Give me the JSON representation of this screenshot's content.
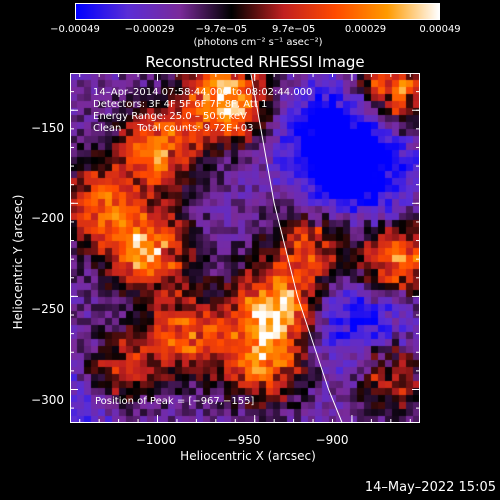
{
  "chart_data": {
    "type": "heatmap",
    "title": "Reconstructed RHESSI Image",
    "xlabel": "Heliocentric X (arcsec)",
    "ylabel": "Heliocentric Y (arcsec)",
    "xlim": [
      -1045,
      -865
    ],
    "ylim": [
      -318,
      -130
    ],
    "x_ticks": [
      -1000,
      -950,
      -900
    ],
    "x_tick_labels": [
      "−1000",
      "−950",
      "−900"
    ],
    "y_ticks": [
      -150,
      -200,
      -250,
      -300
    ],
    "y_tick_labels": [
      "−150",
      "−200",
      "−250",
      "−300"
    ],
    "colorbar": {
      "range": [
        -0.00049,
        0.00049
      ],
      "ticks": [
        -0.00049,
        -0.00029,
        -9.7e-05,
        9.7e-05,
        0.00029,
        0.00049
      ],
      "tick_labels": [
        "−0.00049",
        "−0.00029",
        "−9.7e−05",
        "9.7e−05",
        "0.00029",
        "0.00049"
      ],
      "unit_label": "(photons cm⁻² s⁻¹ asec⁻²)",
      "colors": [
        "#0000ff",
        "#5a2dd6",
        "#7a2a9a",
        "#000000",
        "#c02020",
        "#ff4a00",
        "#ff9a00",
        "#ffffff"
      ]
    },
    "annotations": [
      "14–Apr–2014 07:58:44.000 to 08:02:44.000",
      "Detectors: 3F 4F 5F 6F 7F 8F, Att 1",
      "Energy Range: 25.0 – 50.0 keV",
      "Clean     Total counts: 9.72E+03"
    ],
    "peak_label": "Position of Peak = [−967,−155]",
    "peak": [
      -967,
      -155
    ],
    "limb_curve": [
      [
        -952,
        -130
      ],
      [
        -940,
        -200
      ],
      [
        -928,
        -250
      ],
      [
        -912,
        -300
      ],
      [
        -905,
        -318
      ]
    ],
    "hot_spots": [
      {
        "x": -965,
        "y": -145,
        "level": 1.0
      },
      {
        "x": -1000,
        "y": -170,
        "level": 0.6
      },
      {
        "x": -1005,
        "y": -225,
        "level": 0.75
      },
      {
        "x": -940,
        "y": -255,
        "level": 0.85
      },
      {
        "x": -945,
        "y": -285,
        "level": 0.6
      },
      {
        "x": -985,
        "y": -270,
        "level": 0.5
      },
      {
        "x": -920,
        "y": -220,
        "level": 0.45
      },
      {
        "x": -880,
        "y": -140,
        "level": 0.7
      },
      {
        "x": -875,
        "y": -230,
        "level": 0.75
      },
      {
        "x": -880,
        "y": -290,
        "level": 0.55
      },
      {
        "x": -1030,
        "y": -200,
        "level": 0.45
      },
      {
        "x": -1020,
        "y": -290,
        "level": 0.4
      }
    ],
    "cold_spots": [
      {
        "x": -900,
        "y": -185,
        "level": -0.8
      },
      {
        "x": -890,
        "y": -270,
        "level": -0.7
      },
      {
        "x": -905,
        "y": -160,
        "level": -0.6
      },
      {
        "x": -1035,
        "y": -305,
        "level": -0.4
      }
    ]
  },
  "footer": {
    "timestamp": "14–May–2022 15:05"
  }
}
